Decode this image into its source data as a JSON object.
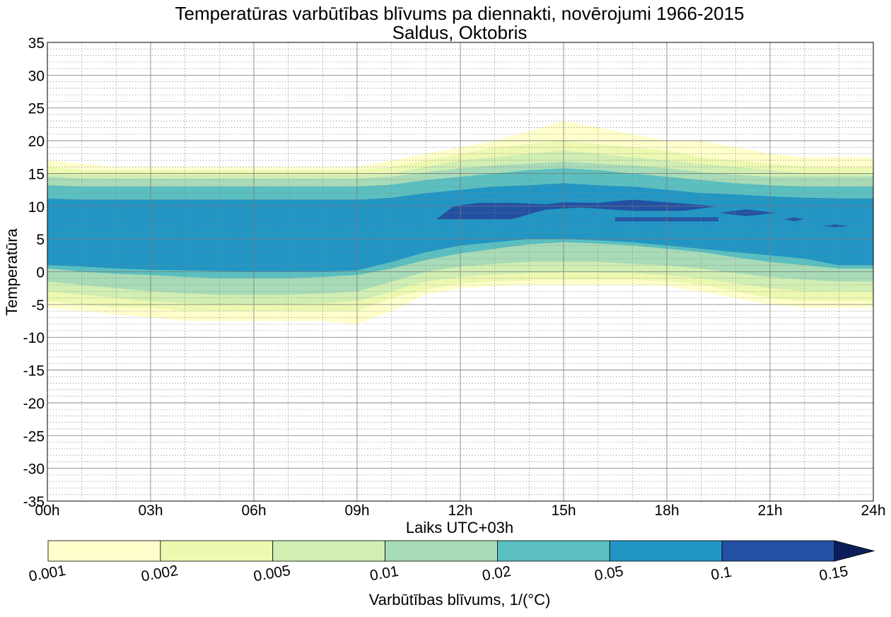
{
  "chart_data": {
    "type": "contour",
    "title": "Temperatūras varbūtības blīvums pa diennakti, novērojumi 1966-2015",
    "subtitle": "Saldus, Oktobris",
    "xlabel": "Laiks UTC+03h",
    "ylabel": "Temperatūra",
    "xlim": [
      0,
      24
    ],
    "ylim": [
      -35,
      35
    ],
    "x_ticks": [
      0,
      3,
      6,
      9,
      12,
      15,
      18,
      21,
      24
    ],
    "x_tick_labels": [
      "00h",
      "03h",
      "06h",
      "09h",
      "12h",
      "15h",
      "18h",
      "21h",
      "24h"
    ],
    "y_ticks": [
      35,
      30,
      25,
      20,
      15,
      10,
      5,
      0,
      -5,
      -10,
      -15,
      -20,
      -25,
      -30,
      -35
    ],
    "y_tick_labels": [
      "35",
      "30",
      "25",
      "20",
      "15",
      "10",
      "5",
      "0",
      "-5",
      "-10",
      "-15",
      "-20",
      "-25",
      "-30",
      "-35"
    ],
    "grid": true,
    "colorbar": {
      "label": "Varbūtības blīvums, 1/(°C)",
      "levels": [
        "0.001",
        "0.002",
        "0.005",
        "0.01",
        "0.02",
        "0.05",
        "0.1",
        "0.15"
      ],
      "colors": [
        "#ffffcc",
        "#edf8b1",
        "#d1eeb3",
        "#a8dbb7",
        "#5bbfc0",
        "#2196c4",
        "#2350a2",
        "#0b1e5a"
      ],
      "extend": "max"
    },
    "x": [
      0,
      1,
      2,
      3,
      4,
      5,
      6,
      7,
      8,
      9,
      10,
      11,
      12,
      13,
      14,
      15,
      16,
      17,
      18,
      19,
      20,
      21,
      22,
      23,
      24
    ],
    "bands": [
      {
        "level": 0.001,
        "upper": [
          17,
          16.5,
          16,
          16,
          16,
          16,
          16,
          16,
          16,
          16,
          17,
          18,
          19,
          20,
          21.5,
          23,
          22,
          21,
          20,
          20,
          19,
          18,
          17.5,
          17.5,
          17.5
        ],
        "lower": [
          -5.5,
          -6,
          -6.5,
          -7,
          -7.5,
          -7.5,
          -7.5,
          -7.5,
          -7.5,
          -8,
          -6,
          -3.5,
          -2.5,
          -2.2,
          -2,
          -2,
          -2,
          -2,
          -2.2,
          -3,
          -4,
          -5,
          -5.5,
          -5.5,
          -5.5
        ]
      },
      {
        "level": 0.002,
        "upper": [
          16,
          15.5,
          15.5,
          15.5,
          15.5,
          15.5,
          15.5,
          15.5,
          15.5,
          15.5,
          16,
          17,
          18,
          19,
          19.5,
          20,
          19.5,
          19,
          18.5,
          17.5,
          17,
          16.5,
          16,
          16,
          16
        ],
        "lower": [
          -4.5,
          -5,
          -5.5,
          -5.5,
          -6,
          -6,
          -6,
          -6,
          -6,
          -6,
          -4,
          -2.8,
          -1.8,
          -1.5,
          -1.3,
          -1.2,
          -1.2,
          -1.2,
          -1.5,
          -2,
          -3,
          -4,
          -4.5,
          -4.5,
          -4.5
        ]
      },
      {
        "level": 0.005,
        "upper": [
          15,
          14.8,
          14.8,
          14.8,
          14.8,
          14.8,
          14.8,
          14.8,
          14.8,
          14.8,
          15,
          16,
          17,
          17.5,
          18,
          18.5,
          18,
          17.5,
          17,
          16.5,
          16,
          15.5,
          15,
          15,
          15
        ],
        "lower": [
          -3,
          -3.5,
          -4,
          -4.5,
          -4.8,
          -5,
          -5,
          -5,
          -4.8,
          -4.5,
          -3,
          -1.5,
          -0.8,
          -0.4,
          -0.2,
          -0.1,
          -0.1,
          -0.2,
          -0.5,
          -1,
          -1.8,
          -2.5,
          -3,
          -3,
          -3
        ]
      },
      {
        "level": 0.01,
        "upper": [
          14.5,
          14.2,
          14.2,
          14.2,
          14.2,
          14.2,
          14.2,
          14.2,
          14.2,
          14.2,
          14.5,
          15.2,
          15.8,
          16.2,
          16.5,
          16.8,
          16.5,
          16.2,
          15.8,
          15.2,
          14.8,
          14.5,
          14.5,
          14.5,
          14.5
        ],
        "lower": [
          -1.5,
          -2,
          -2.5,
          -3,
          -3.3,
          -3.5,
          -3.5,
          -3.5,
          -3.3,
          -3,
          -1.5,
          0,
          0.8,
          1.2,
          1.5,
          1.5,
          1.5,
          1.2,
          1,
          0.5,
          -0.2,
          -0.8,
          -1.2,
          -1.5,
          -1.5
        ]
      },
      {
        "level": 0.02,
        "upper": [
          13.2,
          13,
          13,
          13,
          13,
          13,
          13,
          13,
          13,
          13,
          13.3,
          14,
          14.5,
          15,
          15.5,
          15.8,
          15.5,
          15,
          14.5,
          14,
          13.5,
          13.2,
          13,
          13,
          13
        ],
        "lower": [
          0.5,
          0,
          -0.3,
          -0.5,
          -0.8,
          -1,
          -1,
          -1,
          -0.8,
          -0.5,
          0.5,
          1.8,
          2.8,
          3.5,
          4.2,
          4.5,
          4.3,
          4,
          3.5,
          3,
          2.2,
          1.5,
          1,
          0.5,
          0.5
        ]
      },
      {
        "level": 0.05,
        "upper": [
          11.2,
          11,
          11,
          11,
          11,
          11,
          11,
          11,
          11,
          11,
          11.3,
          12,
          12.5,
          13,
          13.2,
          13.5,
          13.2,
          13,
          12.5,
          12,
          11.8,
          11.5,
          11.3,
          11.2,
          11.2
        ],
        "lower": [
          1,
          0.8,
          0.5,
          0.3,
          0.2,
          0.1,
          0,
          0,
          0,
          0.2,
          1.5,
          3,
          4,
          4.5,
          5,
          5,
          4.8,
          4.5,
          4,
          3.5,
          3,
          2.5,
          2,
          1,
          1
        ]
      }
    ],
    "peaks": [
      {
        "level": 0.1,
        "x": [
          11.3,
          11.8,
          12.5,
          13.5,
          14.5,
          15,
          16,
          17,
          18,
          19.5,
          18.5,
          17,
          15.5,
          14.5,
          13.5,
          12.5,
          11.8,
          11.3
        ],
        "y": [
          8,
          10,
          10.5,
          10.5,
          10.3,
          10.6,
          10.5,
          11,
          10.6,
          10,
          9.3,
          9.3,
          9.8,
          9.5,
          8,
          8,
          8,
          8
        ]
      },
      {
        "level": 0.1,
        "x": [
          16.5,
          19.5,
          19.5,
          16.5
        ],
        "y": [
          8.3,
          8.3,
          7.7,
          7.7
        ]
      },
      {
        "level": 0.1,
        "x": [
          19.5,
          20.3,
          21.2,
          20.3
        ],
        "y": [
          9,
          9.5,
          9,
          8.5
        ]
      },
      {
        "level": 0.1,
        "x": [
          21.4,
          21.7,
          22,
          21.7
        ],
        "y": [
          8,
          8.3,
          8,
          7.7
        ]
      },
      {
        "level": 0.1,
        "x": [
          22.5,
          22.9,
          23.3,
          22.9
        ],
        "y": [
          7,
          7.2,
          7,
          6.8
        ]
      }
    ]
  }
}
